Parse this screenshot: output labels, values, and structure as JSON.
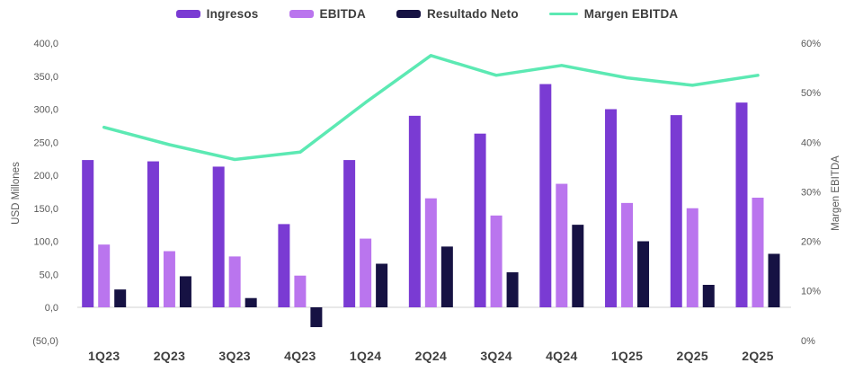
{
  "legend": {
    "items": [
      {
        "key": "ingresos",
        "label": "Ingresos",
        "color": "#7a3bd3",
        "marker": "bar"
      },
      {
        "key": "ebitda",
        "label": "EBITDA",
        "color": "#ba75ee",
        "marker": "bar"
      },
      {
        "key": "resultado-neto",
        "label": "Resultado Neto",
        "color": "#161243",
        "marker": "bar"
      },
      {
        "key": "margen-ebitda",
        "label": "Margen EBITDA",
        "color": "#5ce9b3",
        "marker": "line"
      }
    ]
  },
  "left_axis": {
    "title": "USD Millones",
    "tick_labels": [
      "400,0",
      "350,0",
      "300,0",
      "250,0",
      "200,0",
      "150,0",
      "100,0",
      "50,0",
      "0,0",
      "(50,0)"
    ],
    "tick_values": [
      400,
      350,
      300,
      250,
      200,
      150,
      100,
      50,
      0,
      -50
    ]
  },
  "right_axis": {
    "title": "Margen EBITDA",
    "tick_labels": [
      "60%",
      "50%",
      "40%",
      "30%",
      "20%",
      "10%",
      "0%"
    ],
    "tick_values": [
      60,
      50,
      40,
      30,
      20,
      10,
      0
    ]
  },
  "chart_data": {
    "type": "bar+line combo",
    "title": "",
    "categories": [
      "1Q23",
      "2Q23",
      "3Q23",
      "4Q23",
      "1Q24",
      "2Q24",
      "3Q24",
      "4Q24",
      "1Q25",
      "2Q25",
      "2Q25"
    ],
    "series": [
      {
        "name": "Ingresos",
        "type": "bar",
        "axis": "left",
        "unit": "USD Millones",
        "color": "#7a3bd3",
        "values": [
          223,
          221,
          213,
          126,
          223,
          290,
          263,
          338,
          300,
          291,
          310
        ]
      },
      {
        "name": "EBITDA",
        "type": "bar",
        "axis": "left",
        "unit": "USD Millones",
        "color": "#ba75ee",
        "values": [
          95,
          85,
          77,
          48,
          104,
          165,
          139,
          187,
          158,
          150,
          166
        ]
      },
      {
        "name": "Resultado Neto",
        "type": "bar",
        "axis": "left",
        "unit": "USD Millones",
        "color": "#161243",
        "values": [
          27,
          47,
          14,
          -30,
          66,
          92,
          53,
          125,
          100,
          34,
          81
        ]
      },
      {
        "name": "Margen EBITDA",
        "type": "line",
        "axis": "right",
        "unit": "%",
        "color": "#5ce9b3",
        "values": [
          43,
          39.5,
          36.5,
          38,
          48,
          57.5,
          53.5,
          55.5,
          53,
          51.5,
          53.5
        ]
      }
    ],
    "left_ylim": [
      -50,
      400
    ],
    "right_ylim": [
      0,
      60
    ],
    "grid": false,
    "legend_position": "top-center",
    "baseline_color": "#d9d9d9"
  }
}
